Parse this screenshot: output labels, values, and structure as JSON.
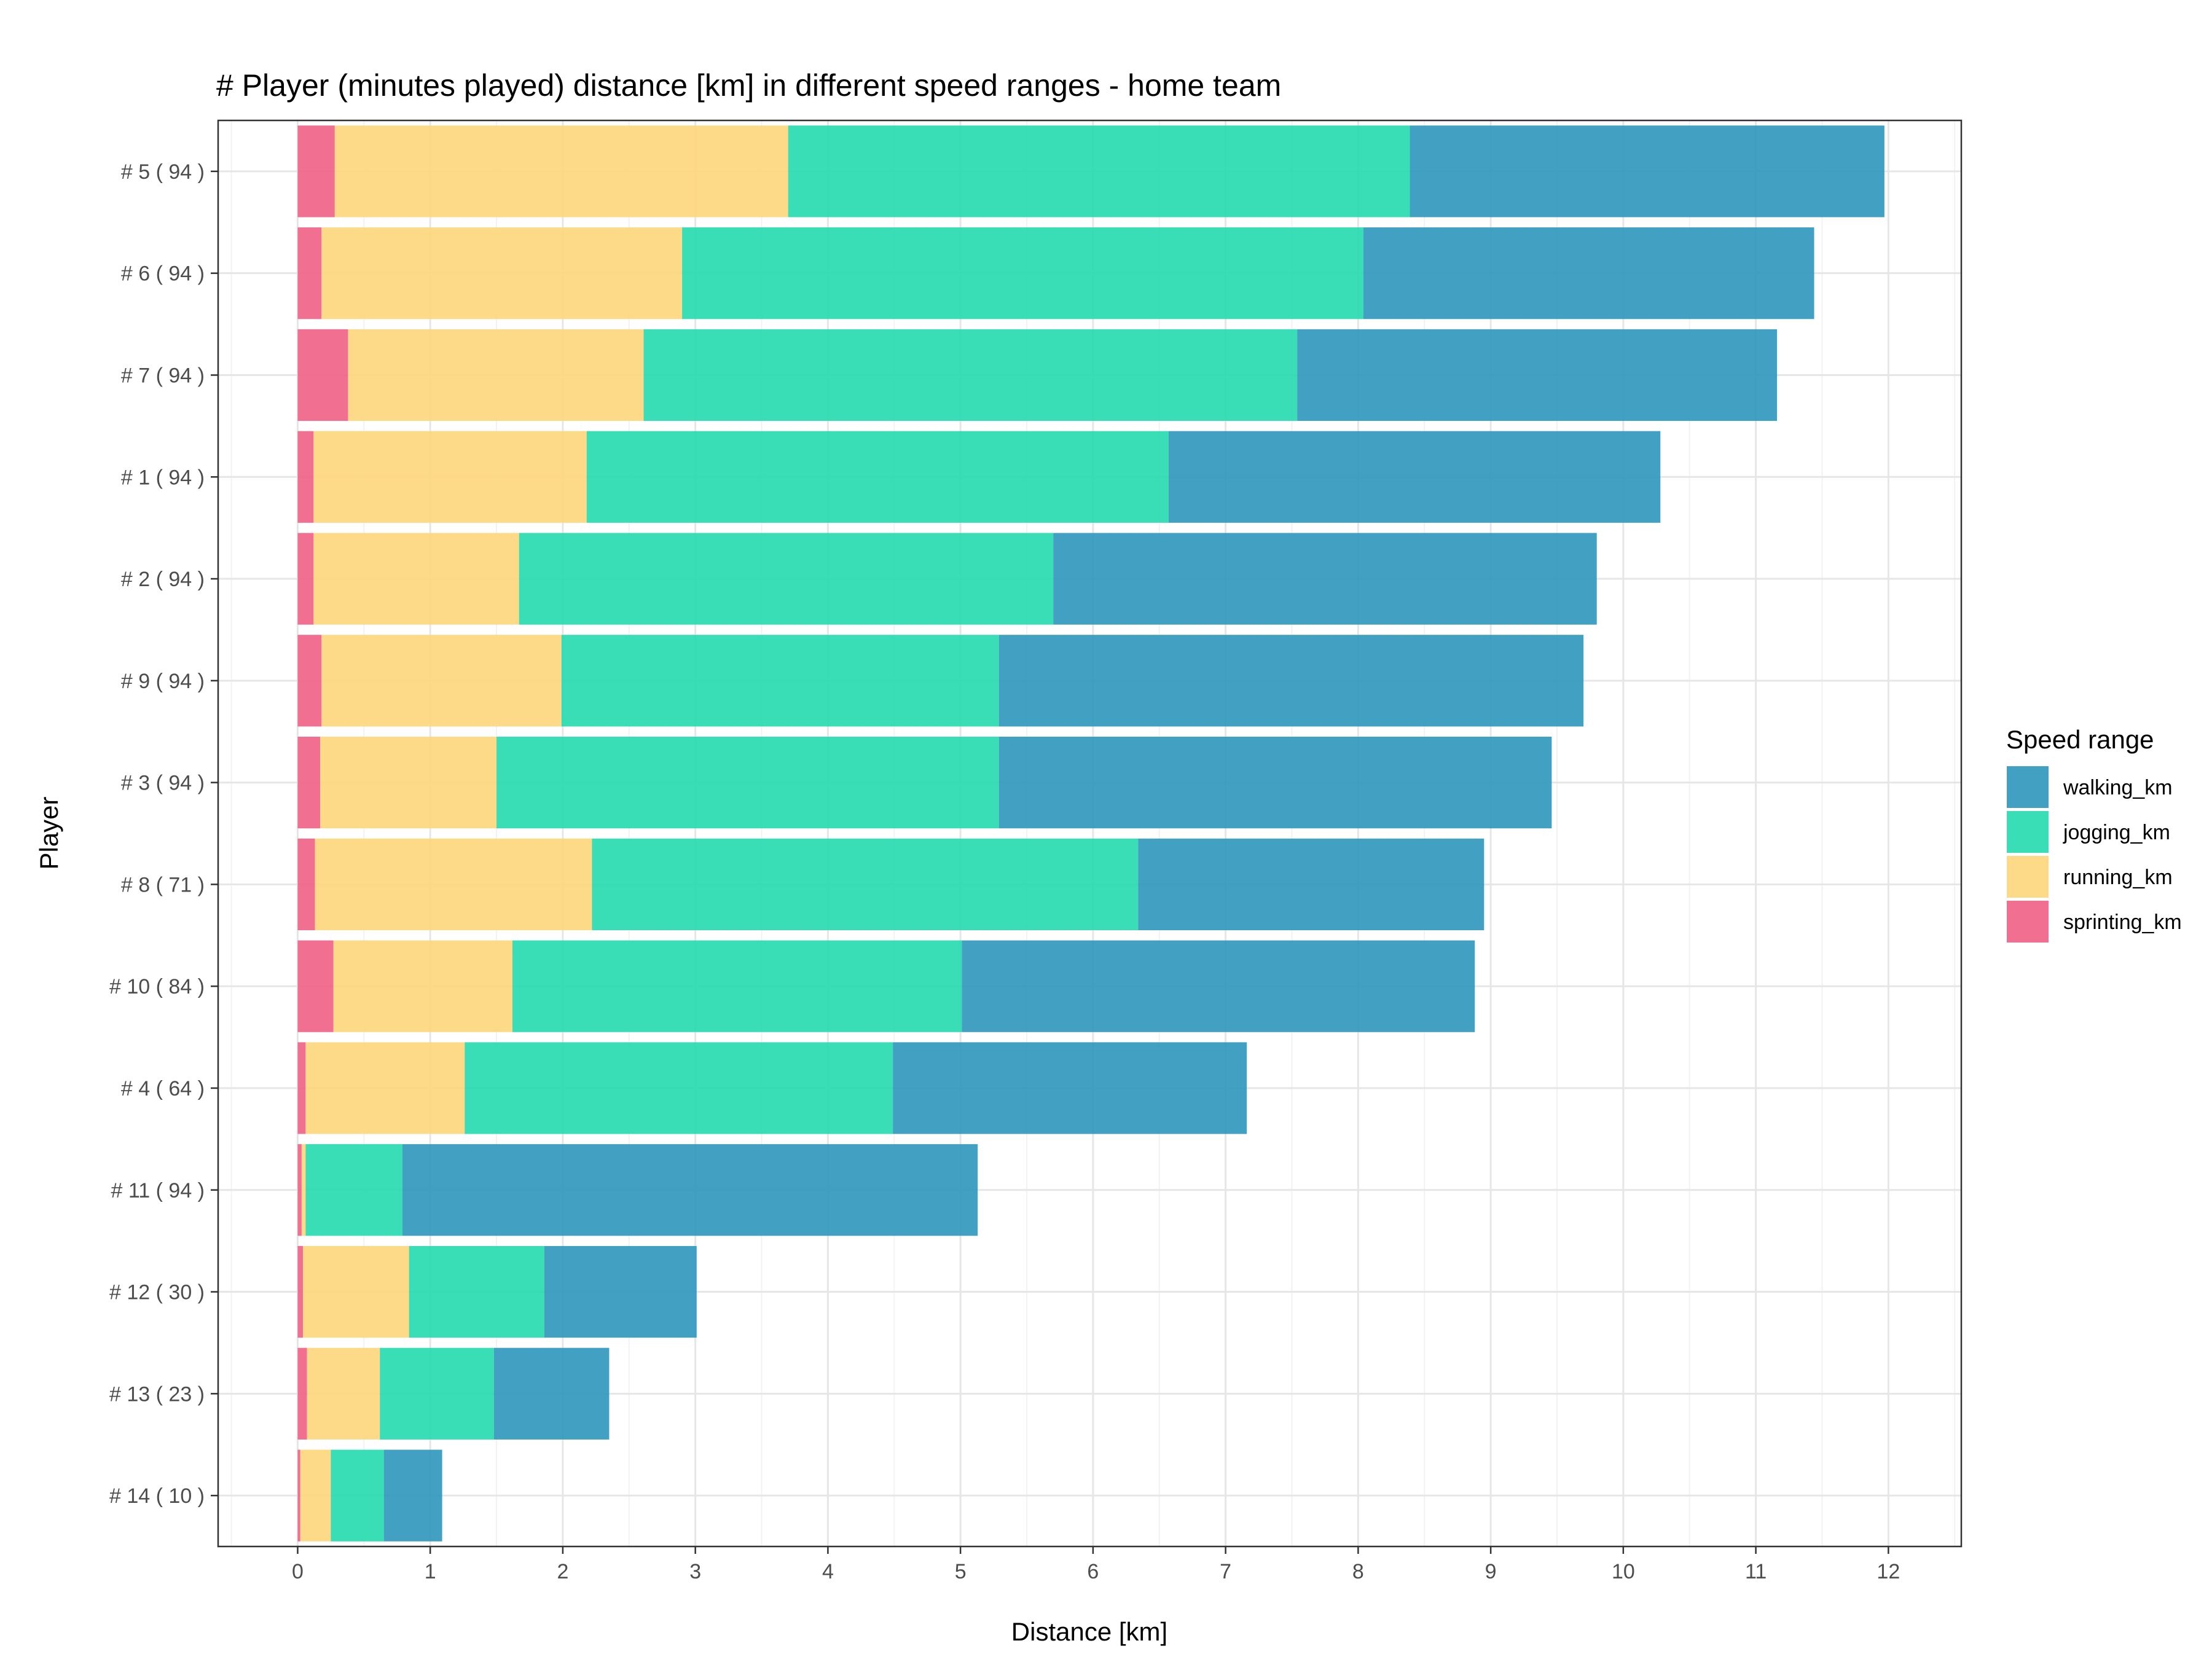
{
  "chart_data": {
    "type": "bar",
    "orientation": "horizontal",
    "stacked": true,
    "title": "# Player (minutes played) distance [km] in different speed ranges - home team",
    "xlabel": "Distance [km]",
    "ylabel": "Player",
    "xlim": [
      -0.6,
      12.55
    ],
    "xticks": [
      "0",
      "1",
      "2",
      "3",
      "4",
      "5",
      "6",
      "7",
      "8",
      "9",
      "10",
      "11",
      "12"
    ],
    "grid": true,
    "legend": {
      "title": "Speed range",
      "position": "right",
      "entries": [
        "walking_km",
        "jogging_km",
        "running_km",
        "sprinting_km"
      ]
    },
    "categories": [
      "# 5 ( 94 )",
      "# 6 ( 94 )",
      "# 7 ( 94 )",
      "# 1 ( 94 )",
      "# 2 ( 94 )",
      "# 9 ( 94 )",
      "# 3 ( 94 )",
      "# 8 ( 71 )",
      "# 10 ( 84 )",
      "# 4 ( 64 )",
      "# 11 ( 94 )",
      "# 12 ( 30 )",
      "# 13 ( 23 )",
      "# 14 ( 10 )"
    ],
    "series": [
      {
        "name": "sprinting_km",
        "color": "#ef5f85",
        "values": [
          0.28,
          0.18,
          0.38,
          0.12,
          0.12,
          0.18,
          0.17,
          0.13,
          0.27,
          0.06,
          0.03,
          0.04,
          0.07,
          0.02
        ]
      },
      {
        "name": "running_km",
        "color": "#fdd67b",
        "values": [
          3.42,
          2.72,
          2.23,
          2.06,
          1.55,
          1.81,
          1.33,
          2.09,
          1.35,
          1.2,
          0.03,
          0.8,
          0.55,
          0.23
        ]
      },
      {
        "name": "jogging_km",
        "color": "#24d9ae",
        "values": [
          4.69,
          5.14,
          4.93,
          4.39,
          4.03,
          3.3,
          3.79,
          4.12,
          3.39,
          3.23,
          0.73,
          1.02,
          0.86,
          0.4
        ]
      },
      {
        "name": "walking_km",
        "color": "#2e96bc",
        "values": [
          3.58,
          3.4,
          3.62,
          3.71,
          4.1,
          4.41,
          4.17,
          2.61,
          3.87,
          2.67,
          4.34,
          1.15,
          0.87,
          0.44
        ]
      }
    ]
  }
}
